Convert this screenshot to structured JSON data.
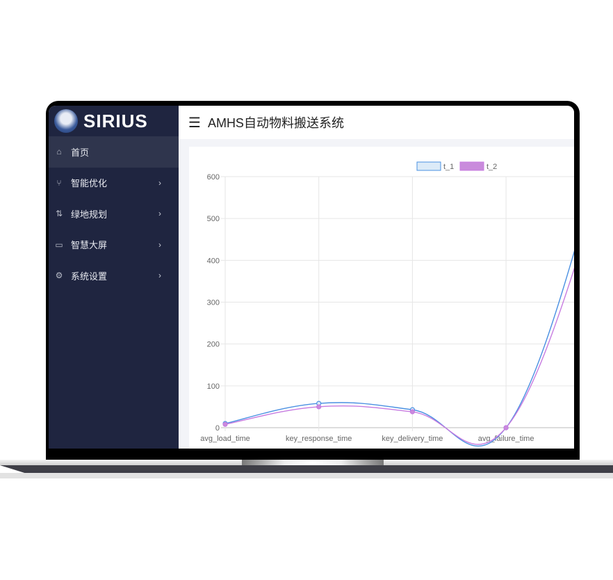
{
  "app": {
    "logo_text": "SIRIUS",
    "title": "AMHS自动物料搬送系统"
  },
  "sidebar": {
    "items": [
      {
        "label": "首页",
        "icon": "home-icon",
        "active": true
      },
      {
        "label": "智能优化",
        "icon": "branch-icon"
      },
      {
        "label": "绿地规划",
        "icon": "pull-request-icon"
      },
      {
        "label": "智慧大屏",
        "icon": "screen-icon"
      },
      {
        "label": "系统设置",
        "icon": "gear-icon"
      }
    ]
  },
  "chart_data": {
    "type": "line",
    "categories": [
      "avg_load_time",
      "key_response_time",
      "key_delivery_time",
      "avg_failure_time"
    ],
    "series": [
      {
        "name": "t_1",
        "values": [
          10,
          58,
          43,
          0
        ],
        "color": "#4a90e2",
        "fill": "#dcebf8"
      },
      {
        "name": "t_2",
        "values": [
          8,
          50,
          38,
          0
        ],
        "color": "#c77be0",
        "fill": "#c98bdc"
      }
    ],
    "ylim": [
      0,
      600
    ],
    "yticks": [
      "0",
      "100",
      "200",
      "300",
      "400",
      "500",
      "600"
    ],
    "grid": true,
    "legend": "top"
  }
}
